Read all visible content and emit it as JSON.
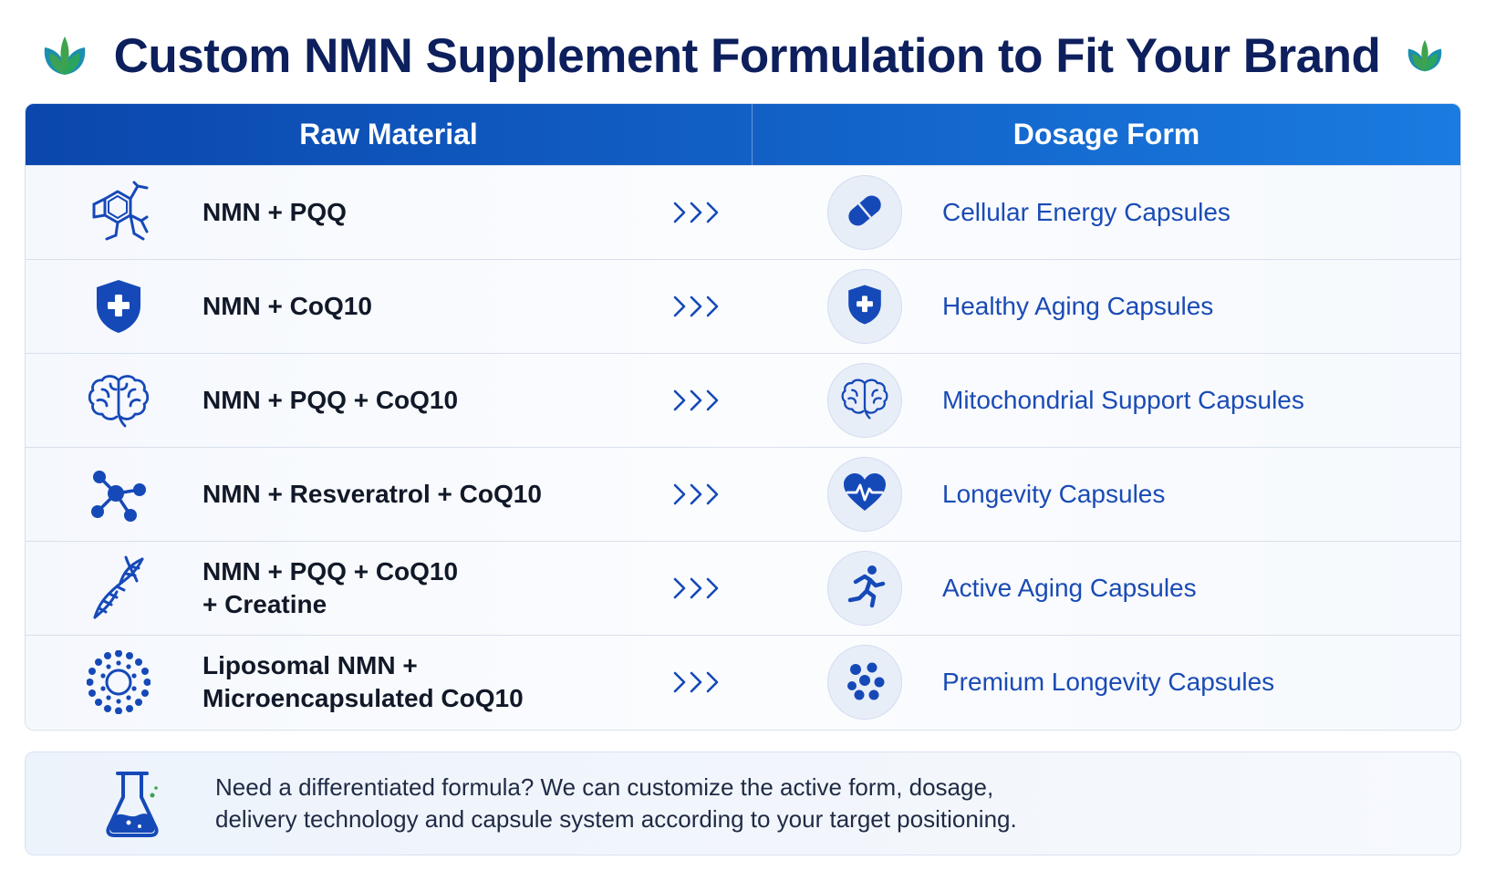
{
  "title": "Custom NMN Supplement Formulation to Fit Your Brand",
  "table": {
    "header": {
      "raw_material": "Raw Material",
      "dosage_form": "Dosage Form"
    },
    "rows": [
      {
        "raw_icon": "molecule-structure-icon",
        "raw_line1": "NMN + PQQ",
        "raw_line2": "",
        "dose_icon": "capsule-icon",
        "dosage": "Cellular Energy Capsules"
      },
      {
        "raw_icon": "shield-plus-icon",
        "raw_line1": "NMN + CoQ10",
        "raw_line2": "",
        "dose_icon": "shield-plus-icon",
        "dosage": "Healthy Aging Capsules"
      },
      {
        "raw_icon": "brain-icon",
        "raw_line1": "NMN + PQQ + CoQ10",
        "raw_line2": "",
        "dose_icon": "brain-icon",
        "dosage": "Mitochondrial Support Capsules"
      },
      {
        "raw_icon": "molecule-network-icon",
        "raw_line1": "NMN + Resveratrol + CoQ10",
        "raw_line2": "",
        "dose_icon": "heart-pulse-icon",
        "dosage": "Longevity Capsules"
      },
      {
        "raw_icon": "dna-icon",
        "raw_line1": "NMN + PQQ + CoQ10",
        "raw_line2": "+ Creatine",
        "dose_icon": "running-person-icon",
        "dosage": "Active Aging Capsules"
      },
      {
        "raw_icon": "liposome-icon",
        "raw_line1": "Liposomal NMN +",
        "raw_line2": "Microencapsulated CoQ10",
        "dose_icon": "dots-cluster-icon",
        "dosage": "Premium Longevity Capsules"
      }
    ]
  },
  "note": {
    "icon": "flask-icon",
    "line1": "Need a differentiated formula? We can customize the active form, dosage,",
    "line2": "delivery technology and capsule system according to your target positioning."
  },
  "colors": {
    "title": "#0d1f5c",
    "header_start": "#0b47ad",
    "header_end": "#1a7be0",
    "icon_blue": "#1649b8",
    "dosage_text": "#1a4bb5",
    "leaf_green": "#3fa34d",
    "leaf_teal": "#1b8fb0"
  }
}
